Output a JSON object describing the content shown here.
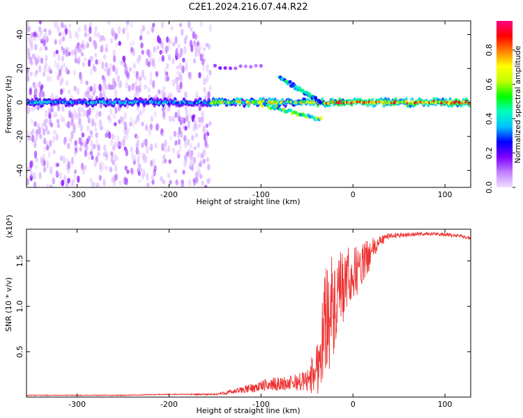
{
  "title": "C2E1.2024.216.07.44.R22",
  "chart_data": [
    {
      "type": "heatmap",
      "xlabel": "Height of straight line (km)",
      "ylabel": "Frequency (Hz)",
      "xlim": [
        -355,
        128
      ],
      "ylim": [
        -50,
        48
      ],
      "xticks": [
        -300,
        -200,
        -100,
        0,
        100
      ],
      "yticks": [
        -40,
        -20,
        0,
        20,
        40
      ],
      "colorbar": {
        "label": "Normalized spectral amplitude",
        "range": [
          0,
          0.97
        ],
        "ticks": [
          0.0,
          0.2,
          0.4,
          0.6,
          0.8
        ],
        "colormap": [
          "#f0e0ff",
          "#c080ff",
          "#8000ff",
          "#0000ff",
          "#00c0ff",
          "#00ffc0",
          "#00ff00",
          "#c0ff00",
          "#ffff00",
          "#ff8000",
          "#ff0000",
          "#ff0080"
        ]
      },
      "features": [
        {
          "name": "noise band",
          "x": [
            -355,
            -155
          ],
          "freq": [
            -50,
            48
          ],
          "amplitude": 0.05
        },
        {
          "name": "main line",
          "x": [
            -355,
            128
          ],
          "freq": 0,
          "amplitude": [
            0.3,
            0.97
          ]
        },
        {
          "name": "upper branch",
          "x": [
            -80,
            -35
          ],
          "freq": [
            15,
            0
          ],
          "amplitude": 0.4
        },
        {
          "name": "lower branch",
          "x": [
            -110,
            -35
          ],
          "freq": [
            0,
            -10
          ],
          "amplitude": 0.5
        },
        {
          "name": "satellite line",
          "x": [
            -150,
            -100
          ],
          "freq": 21,
          "amplitude": 0.15
        }
      ]
    },
    {
      "type": "line",
      "xlabel": "Height of straight line (km)",
      "ylabel": "SNR (10 * v/v)",
      "scale_label": "(x10⁴)",
      "xlim": [
        -355,
        128
      ],
      "ylim": [
        0,
        1.85
      ],
      "xticks": [
        -300,
        -200,
        -100,
        0,
        100
      ],
      "yticks": [
        0.5,
        1.0,
        1.5
      ],
      "color": "#ee3333",
      "series": [
        {
          "x": [
            -355,
            -300,
            -250,
            -200,
            -150,
            -130,
            -110,
            -90,
            -70,
            -50,
            -40,
            -35,
            -30,
            -25,
            -20,
            -15,
            -10,
            -5,
            0,
            10,
            20,
            30,
            40,
            60,
            80,
            100,
            120,
            128
          ],
          "values": [
            0.02,
            0.02,
            0.02,
            0.03,
            0.03,
            0.06,
            0.1,
            0.14,
            0.15,
            0.18,
            0.3,
            0.5,
            0.9,
            1.0,
            0.9,
            1.1,
            1.2,
            1.3,
            1.35,
            1.45,
            1.6,
            1.72,
            1.78,
            1.79,
            1.8,
            1.79,
            1.77,
            1.75
          ],
          "amplitude": [
            0.005,
            0.005,
            0.005,
            0.005,
            0.01,
            0.03,
            0.05,
            0.07,
            0.08,
            0.12,
            0.3,
            0.4,
            0.6,
            0.7,
            0.5,
            0.5,
            0.4,
            0.35,
            0.3,
            0.25,
            0.15,
            0.06,
            0.03,
            0.025,
            0.02,
            0.02,
            0.02,
            0.02
          ]
        }
      ]
    }
  ]
}
